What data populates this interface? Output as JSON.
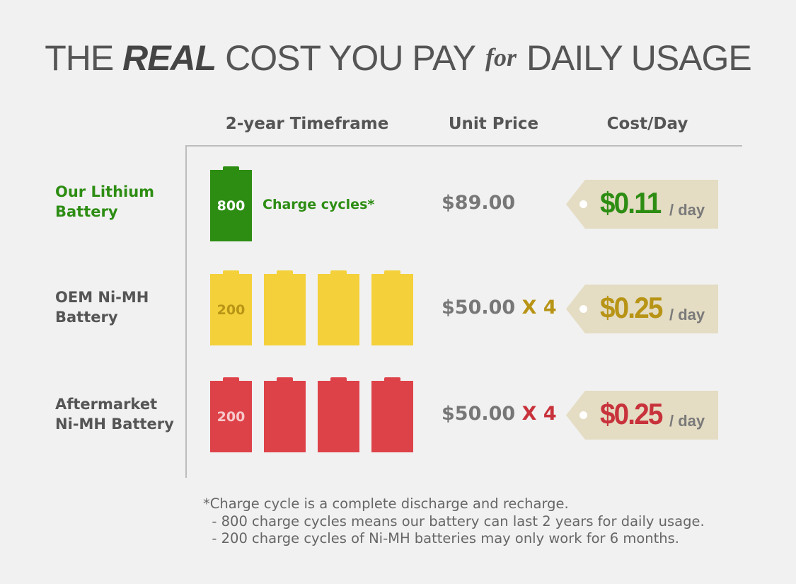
{
  "title": {
    "pre": "THE ",
    "real": "REAL",
    "mid": " COST YOU PAY",
    "for": "for",
    "post": "DAILY USAGE"
  },
  "columns": {
    "timeframe": "2-year Timeframe",
    "unit_price": "Unit Price",
    "cost_day": "Cost/Day"
  },
  "colors": {
    "green": "#2d8d13",
    "yellow": "#f4d03a",
    "yellow_text": "#b89416",
    "red": "#de4249",
    "red_text": "#c8323b",
    "tag_bg": "#e4dcc3"
  },
  "rows": [
    {
      "label_line1": "Our Lithium",
      "label_line2": "Battery",
      "battery_count": 1,
      "cycles": "800",
      "cycles_label": "Charge cycles*",
      "price": "$89.00",
      "multiplier": "",
      "cost": "$0.11",
      "per": "/ day"
    },
    {
      "label_line1": "OEM Ni-MH",
      "label_line2": "Battery",
      "battery_count": 4,
      "cycles": "200",
      "price": "$50.00",
      "multiplier": "X 4",
      "cost": "$0.25",
      "per": "/ day"
    },
    {
      "label_line1": "Aftermarket",
      "label_line2": "Ni-MH Battery",
      "battery_count": 4,
      "cycles": "200",
      "price": "$50.00",
      "multiplier": "X 4",
      "cost": "$0.25",
      "per": "/ day"
    }
  ],
  "footnote": {
    "line1": "*Charge cycle is a complete discharge and recharge.",
    "line2": "  - 800 charge cycles means our battery can last 2 years for daily usage.",
    "line3": "  - 200 charge cycles of Ni-MH batteries may only work for 6 months."
  }
}
